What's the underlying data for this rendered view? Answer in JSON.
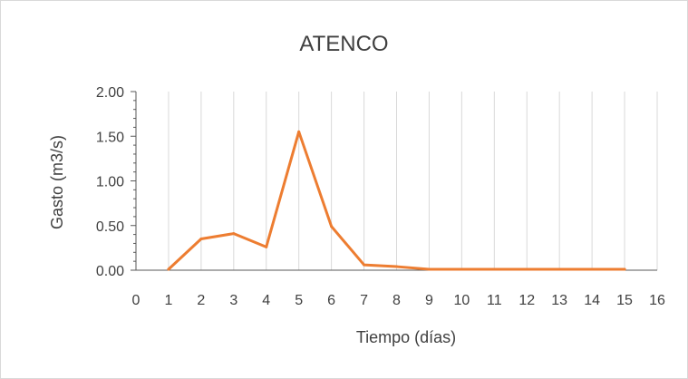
{
  "chart_data": {
    "type": "line",
    "title": "ATENCO",
    "xlabel": "Tiempo (días)",
    "ylabel": "Gasto (m3/s)",
    "xlim": [
      0,
      16
    ],
    "ylim": [
      0,
      2
    ],
    "x_ticks": [
      "0",
      "1",
      "2",
      "3",
      "4",
      "5",
      "6",
      "7",
      "8",
      "9",
      "10",
      "11",
      "12",
      "13",
      "14",
      "15",
      "16"
    ],
    "y_ticks": [
      "0.00",
      "0.50",
      "1.00",
      "1.50",
      "2.00"
    ],
    "grid": "vertical",
    "legend": "none",
    "series": [
      {
        "color": "#ed7d31",
        "x": [
          1,
          2,
          3,
          4,
          5,
          6,
          7,
          8,
          9,
          10,
          11,
          12,
          13,
          14,
          15
        ],
        "values": [
          0.01,
          0.35,
          0.41,
          0.26,
          1.55,
          0.49,
          0.06,
          0.04,
          0.01,
          0.01,
          0.01,
          0.01,
          0.01,
          0.01,
          0.01
        ]
      }
    ]
  }
}
